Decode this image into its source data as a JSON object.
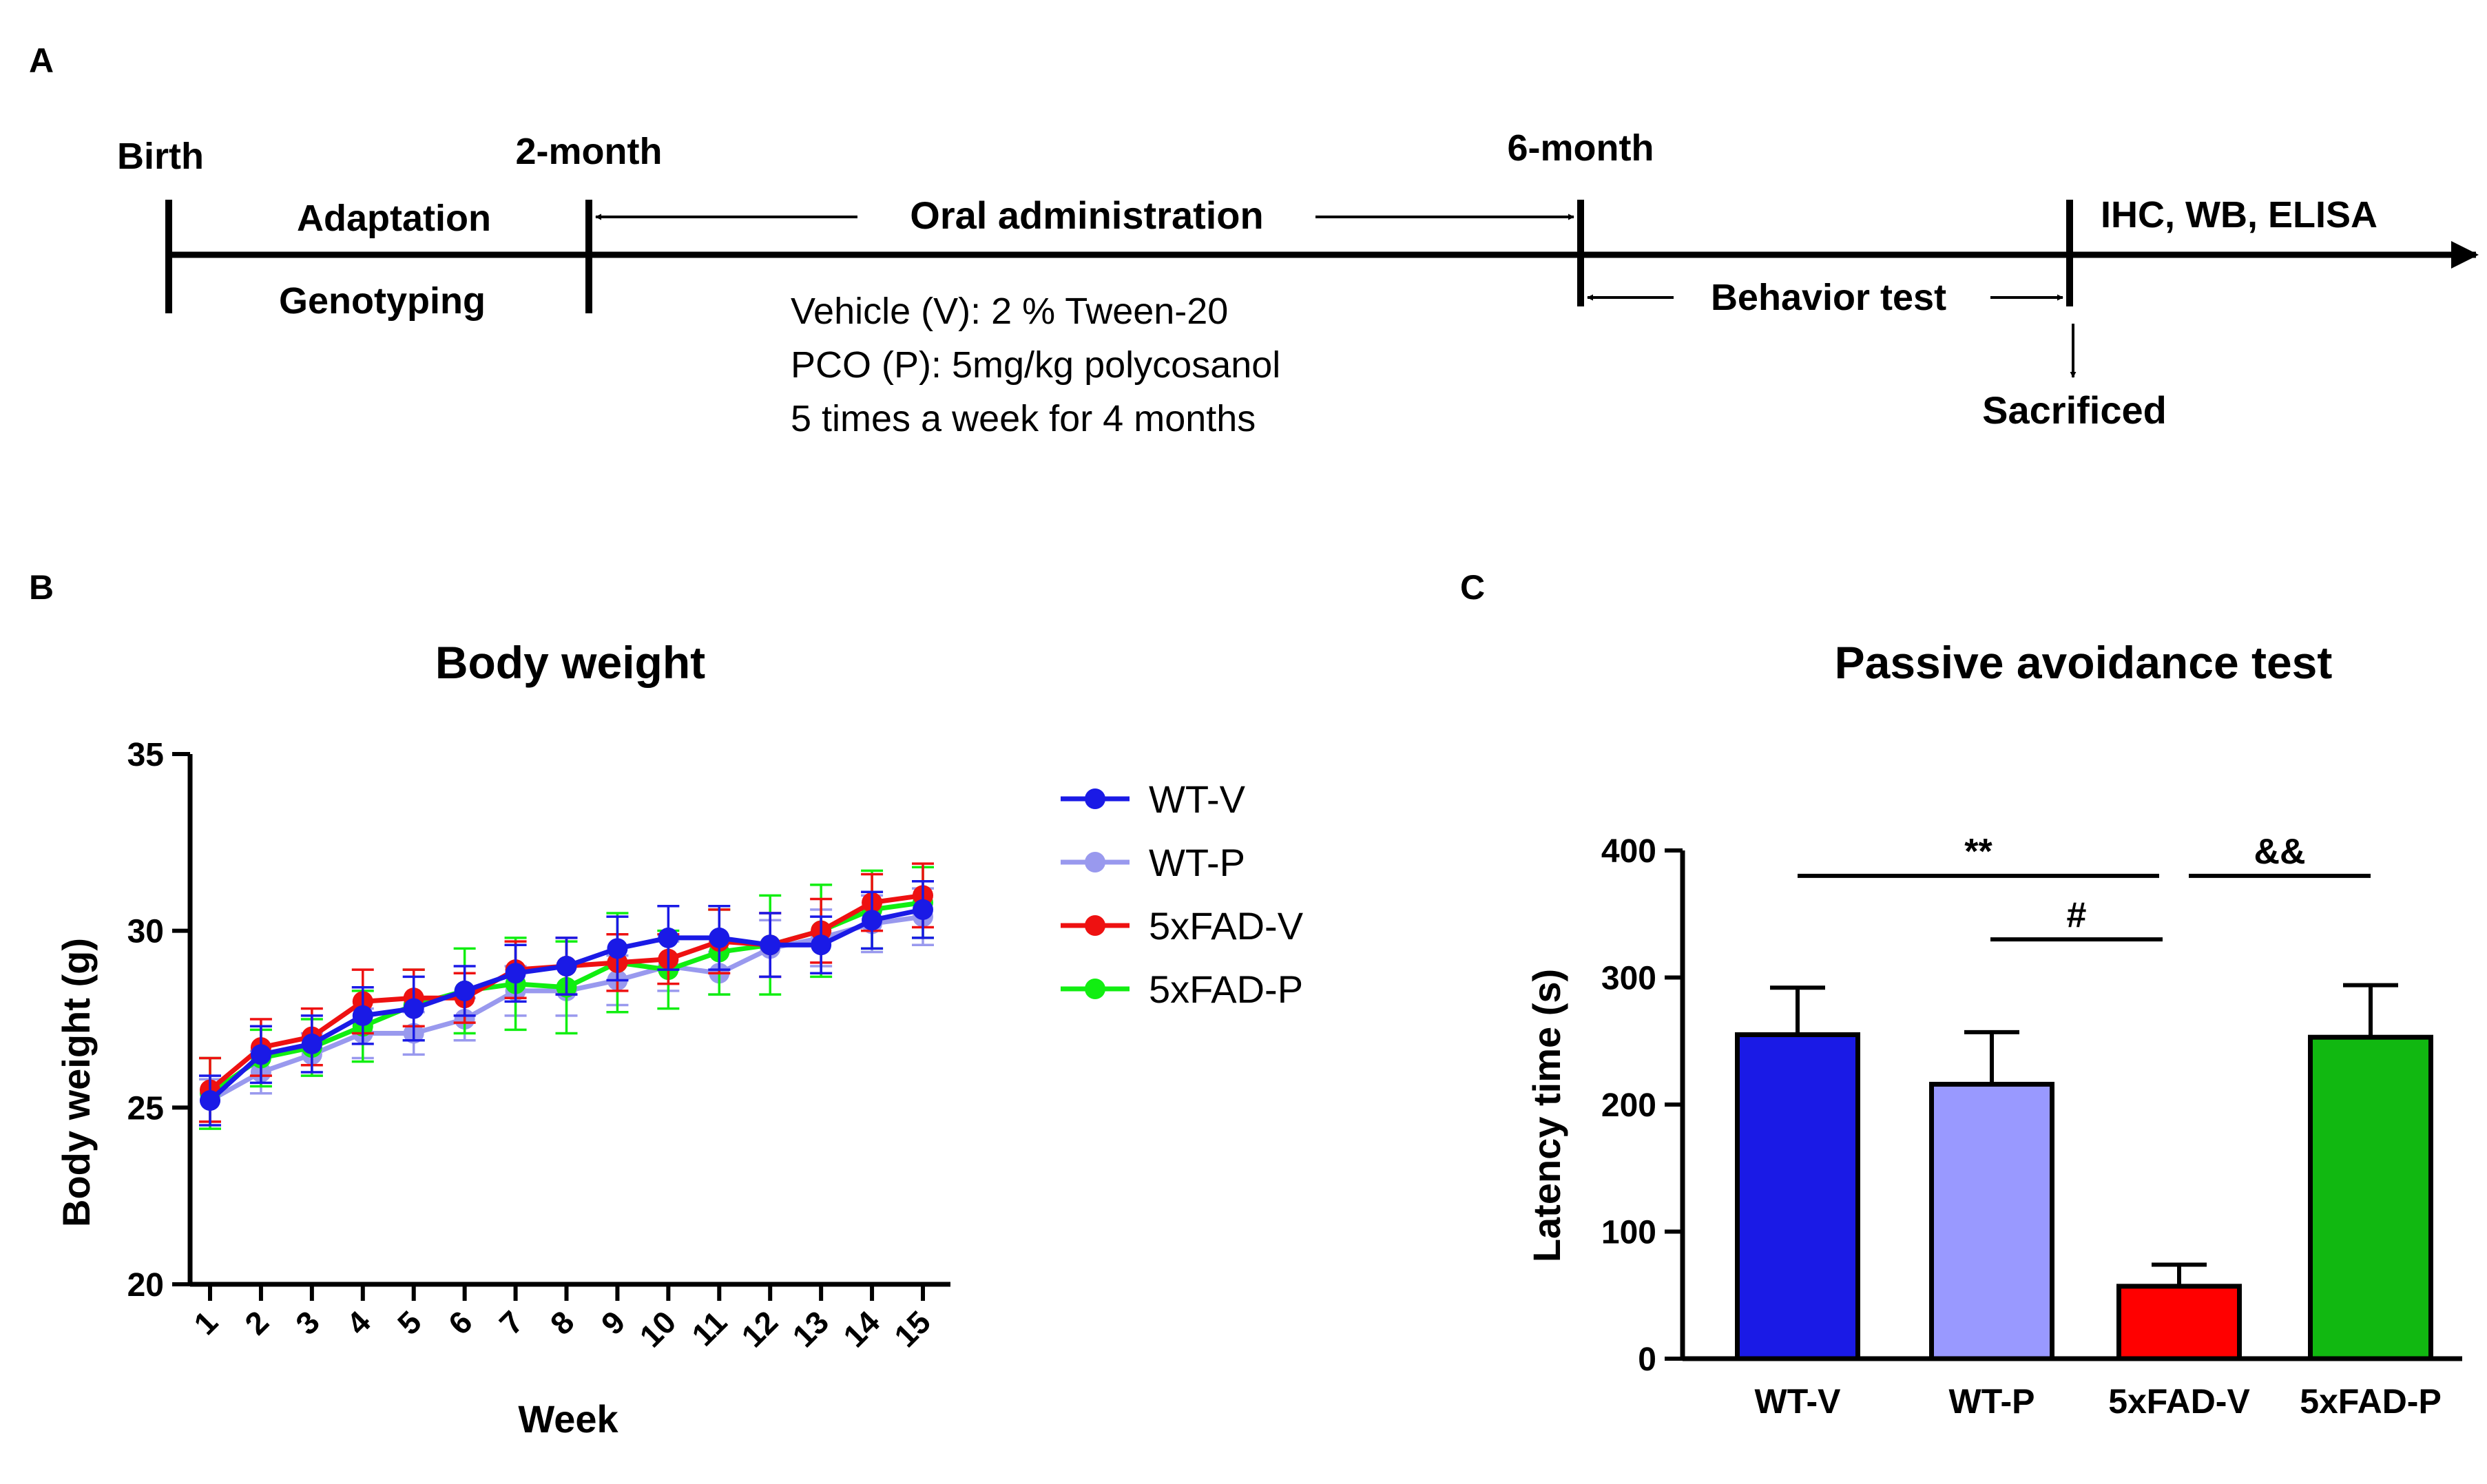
{
  "panel_a": {
    "label": "A",
    "birth": "Birth",
    "adaptation": "Adaptation",
    "genotyping": "Genotyping",
    "two_month": "2-month",
    "six_month": "6-month",
    "oral_admin": "Oral administration",
    "vehicle": "Vehicle (V): 2 % Tween-20",
    "pco": "PCO (P): 5mg/kg polycosanol",
    "schedule": "5 times a week for 4 months",
    "behavior": "Behavior test",
    "assays": "IHC, WB, ELISA",
    "sacrificed": "Sacrificed"
  },
  "panel_b": {
    "label": "B"
  },
  "panel_c": {
    "label": "C"
  },
  "chart_data": [
    {
      "type": "line",
      "title": "Body weight",
      "xlabel": "Week",
      "ylabel": "Body weight (g)",
      "ylim": [
        20,
        35
      ],
      "yticks": [
        20,
        25,
        30,
        35
      ],
      "x": [
        1,
        2,
        3,
        4,
        5,
        6,
        7,
        8,
        9,
        10,
        11,
        12,
        13,
        14,
        15
      ],
      "series": [
        {
          "name": "WT-V",
          "color": "#1a1ae6",
          "values": [
            25.2,
            26.5,
            26.8,
            27.6,
            27.8,
            28.3,
            28.8,
            29.0,
            29.5,
            29.8,
            29.8,
            29.6,
            29.6,
            30.3,
            30.6
          ],
          "errors": [
            0.7,
            0.8,
            0.8,
            0.8,
            0.9,
            0.7,
            0.8,
            0.8,
            0.9,
            0.9,
            0.9,
            0.9,
            0.8,
            0.8,
            0.8
          ]
        },
        {
          "name": "WT-P",
          "color": "#9999ee",
          "values": [
            25.2,
            26.0,
            26.5,
            27.1,
            27.1,
            27.5,
            28.3,
            28.3,
            28.6,
            29.0,
            28.8,
            29.5,
            29.8,
            30.2,
            30.4
          ],
          "errors": [
            0.6,
            0.6,
            0.6,
            0.7,
            0.6,
            0.6,
            0.7,
            0.7,
            0.7,
            0.7,
            0.6,
            0.8,
            0.8,
            0.8,
            0.8
          ]
        },
        {
          "name": "5xFAD-V",
          "color": "#ee1111",
          "values": [
            25.5,
            26.7,
            27.0,
            28.0,
            28.1,
            28.1,
            28.9,
            29.0,
            29.1,
            29.2,
            29.7,
            29.6,
            30.0,
            30.8,
            31.0
          ],
          "errors": [
            0.9,
            0.8,
            0.8,
            0.9,
            0.8,
            0.7,
            0.8,
            0.8,
            0.8,
            0.7,
            0.9,
            0.9,
            0.9,
            0.8,
            0.9
          ]
        },
        {
          "name": "5xFAD-P",
          "color": "#11ee11",
          "values": [
            25.4,
            26.4,
            26.7,
            27.3,
            27.9,
            28.3,
            28.5,
            28.4,
            29.1,
            28.9,
            29.4,
            29.6,
            30.0,
            30.6,
            30.8
          ],
          "errors": [
            1.0,
            0.8,
            0.8,
            1.0,
            1.0,
            1.2,
            1.3,
            1.3,
            1.4,
            1.1,
            1.2,
            1.4,
            1.3,
            1.1,
            1.0
          ]
        }
      ]
    },
    {
      "type": "bar",
      "title": "Passive avoidance test",
      "xlabel": "",
      "ylabel": "Latency time (s)",
      "ylim": [
        0,
        400
      ],
      "yticks": [
        0,
        100,
        200,
        300,
        400
      ],
      "categories": [
        "WT-V",
        "WT-P",
        "5xFAD-V",
        "5xFAD-P"
      ],
      "values": [
        255,
        216,
        57,
        253
      ],
      "errors": [
        37,
        41,
        17,
        41
      ],
      "colors": [
        "#1a1ae6",
        "#9999ff",
        "#ff0000",
        "#11b811"
      ],
      "annotations": [
        {
          "text": "**",
          "from": "WT-V",
          "to": "5xFAD-V",
          "level": 380
        },
        {
          "text": "&&",
          "from": "5xFAD-V",
          "to": "5xFAD-P",
          "level": 380
        },
        {
          "text": "#",
          "from": "WT-P",
          "to": "5xFAD-V",
          "level": 330
        }
      ]
    }
  ]
}
